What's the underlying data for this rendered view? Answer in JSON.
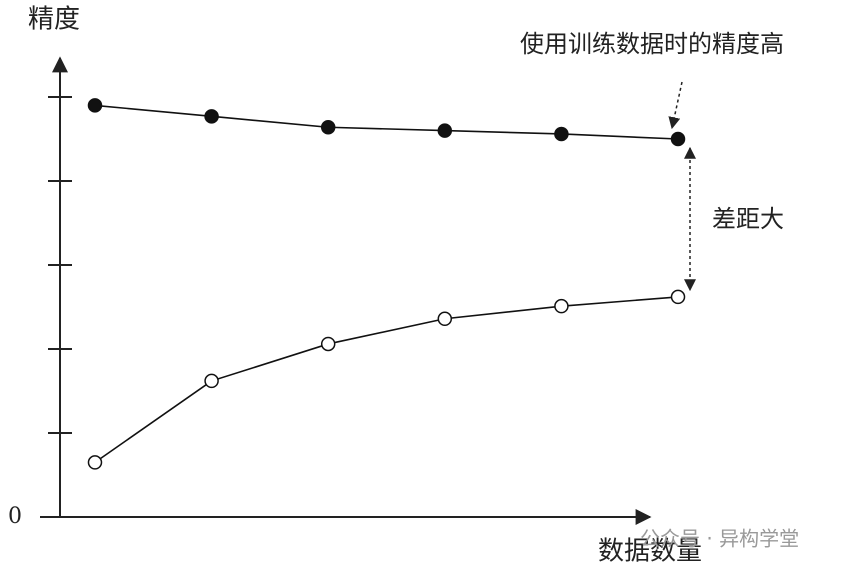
{
  "chart_data": {
    "type": "line",
    "y_label": "精度",
    "x_label": "数据数量",
    "annotations": [
      "使用训练数据时的精度高",
      "差距大"
    ],
    "watermark": "公众号 · 异构学堂",
    "x": [
      1,
      2,
      3,
      4,
      5,
      6
    ],
    "series": [
      {
        "color": "#111111",
        "marker": "filled",
        "values": [
          4.9,
          4.77,
          4.64,
          4.6,
          4.56,
          4.5
        ]
      },
      {
        "color": "#111111",
        "marker": "open",
        "values": [
          0.65,
          1.62,
          2.06,
          2.36,
          2.51,
          2.62
        ]
      }
    ],
    "xlim": [
      0.7,
      6.3
    ],
    "ylim": [
      0,
      5.5
    ],
    "yticks": [
      0
    ],
    "yminor_ticks": [
      1,
      2,
      3,
      4,
      5
    ]
  }
}
